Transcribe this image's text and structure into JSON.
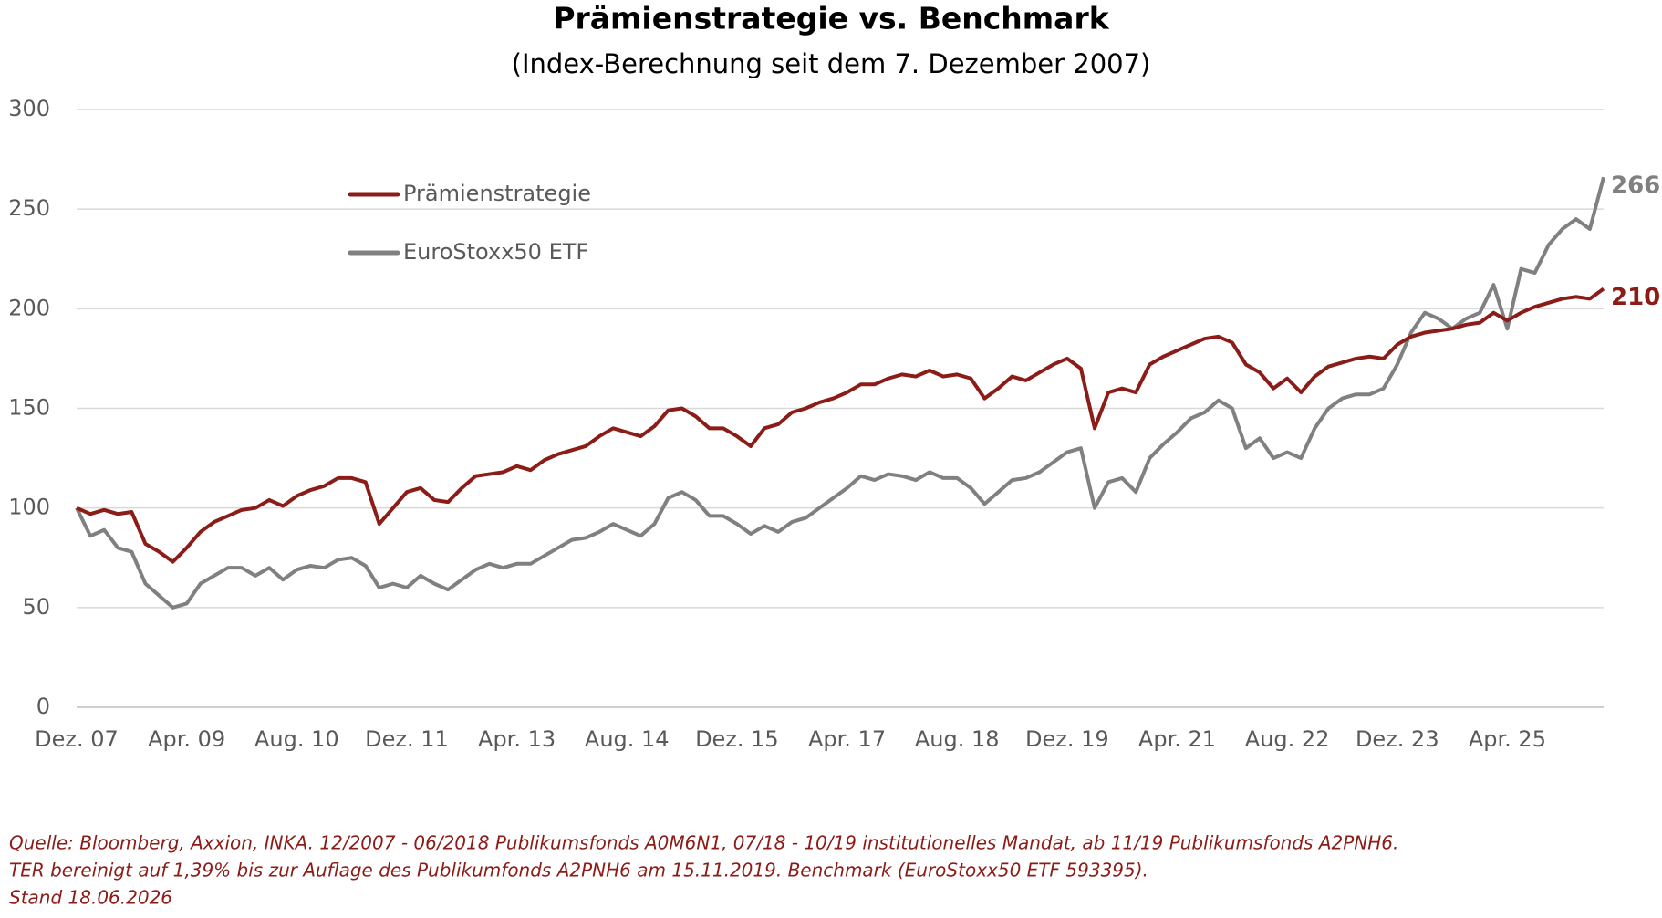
{
  "chart_data": {
    "type": "line",
    "title": "Prämienstrategie vs. Benchmark",
    "subtitle": "(Index-Berechnung seit dem 7. Dezember 2007)",
    "categories": [
      "Dez. 07",
      null,
      null,
      null,
      null,
      null,
      null,
      null,
      "Apr. 09",
      null,
      null,
      null,
      null,
      null,
      null,
      null,
      "Aug. 10",
      null,
      null,
      null,
      null,
      null,
      null,
      null,
      "Dez. 11",
      null,
      null,
      null,
      null,
      null,
      null,
      null,
      "Apr. 13",
      null,
      null,
      null,
      null,
      null,
      null,
      null,
      "Aug. 14",
      null,
      null,
      null,
      null,
      null,
      null,
      null,
      "Dez. 15",
      null,
      null,
      null,
      null,
      null,
      null,
      null,
      "Apr. 17",
      null,
      null,
      null,
      null,
      null,
      null,
      null,
      "Aug. 18",
      null,
      null,
      null,
      null,
      null,
      null,
      null,
      "Dez. 19",
      null,
      null,
      null,
      null,
      null,
      null,
      null,
      "Apr. 21",
      null,
      null,
      null,
      null,
      null,
      null,
      null,
      "Aug. 22",
      null,
      null,
      null,
      null,
      null,
      null,
      null,
      "Dez. 23",
      null,
      null,
      null,
      null,
      null,
      null,
      null,
      "Apr. 25",
      null,
      null,
      null,
      null,
      null,
      null,
      null
    ],
    "series": [
      {
        "name": "Prämienstrategie",
        "color": "#8b1c17",
        "values": [
          100,
          97,
          99,
          97,
          98,
          82,
          78,
          73,
          80,
          88,
          93,
          96,
          99,
          100,
          104,
          101,
          106,
          109,
          111,
          115,
          115,
          113,
          92,
          100,
          108,
          110,
          104,
          103,
          110,
          116,
          117,
          118,
          121,
          119,
          124,
          127,
          129,
          131,
          136,
          140,
          138,
          136,
          141,
          149,
          150,
          146,
          140,
          140,
          136,
          131,
          140,
          142,
          148,
          150,
          153,
          155,
          158,
          162,
          162,
          165,
          167,
          166,
          169,
          166,
          167,
          165,
          155,
          160,
          166,
          164,
          168,
          172,
          175,
          170,
          140,
          158,
          160,
          158,
          172,
          176,
          179,
          182,
          185,
          186,
          183,
          172,
          168,
          160,
          165,
          158,
          166,
          171,
          173,
          175,
          176,
          175,
          182,
          186,
          188,
          189,
          190,
          192,
          193,
          198,
          194,
          198,
          201,
          203,
          205,
          206,
          205,
          210
        ]
      },
      {
        "name": "EuroStoxx50 ETF",
        "color": "#808080",
        "values": [
          100,
          86,
          89,
          80,
          78,
          62,
          56,
          50,
          52,
          62,
          66,
          70,
          70,
          66,
          70,
          64,
          69,
          71,
          70,
          74,
          75,
          71,
          60,
          62,
          60,
          66,
          62,
          59,
          64,
          69,
          72,
          70,
          72,
          72,
          76,
          80,
          84,
          85,
          88,
          92,
          89,
          86,
          92,
          105,
          108,
          104,
          96,
          96,
          92,
          87,
          91,
          88,
          93,
          95,
          100,
          105,
          110,
          116,
          114,
          117,
          116,
          114,
          118,
          115,
          115,
          110,
          102,
          108,
          114,
          115,
          118,
          123,
          128,
          130,
          100,
          113,
          115,
          108,
          125,
          132,
          138,
          145,
          148,
          154,
          150,
          130,
          135,
          125,
          128,
          125,
          140,
          150,
          155,
          157,
          157,
          160,
          172,
          188,
          198,
          195,
          190,
          195,
          198,
          212,
          190,
          220,
          218,
          232,
          240,
          245,
          240,
          266
        ]
      }
    ],
    "ylim": [
      0,
      300
    ],
    "yticks": [
      0,
      50,
      100,
      150,
      200,
      250,
      300
    ],
    "grid": true,
    "legend": "top-left",
    "notes": [
      "Quelle: Bloomberg, Axxion, INKA. 12/2007 - 06/2018 Publikumsfonds A0M6N1, 07/18 - 10/19 institutionelles Mandat, ab 11/19 Publikumsfonds A2PNH6.",
      "TER bereinigt auf 1,39% bis zur Auflage des Publikumfonds A2PNH6 am 15.11.2019. Benchmark (EuroStoxx50 ETF 593395).",
      "Stand 18.06.2026"
    ]
  }
}
